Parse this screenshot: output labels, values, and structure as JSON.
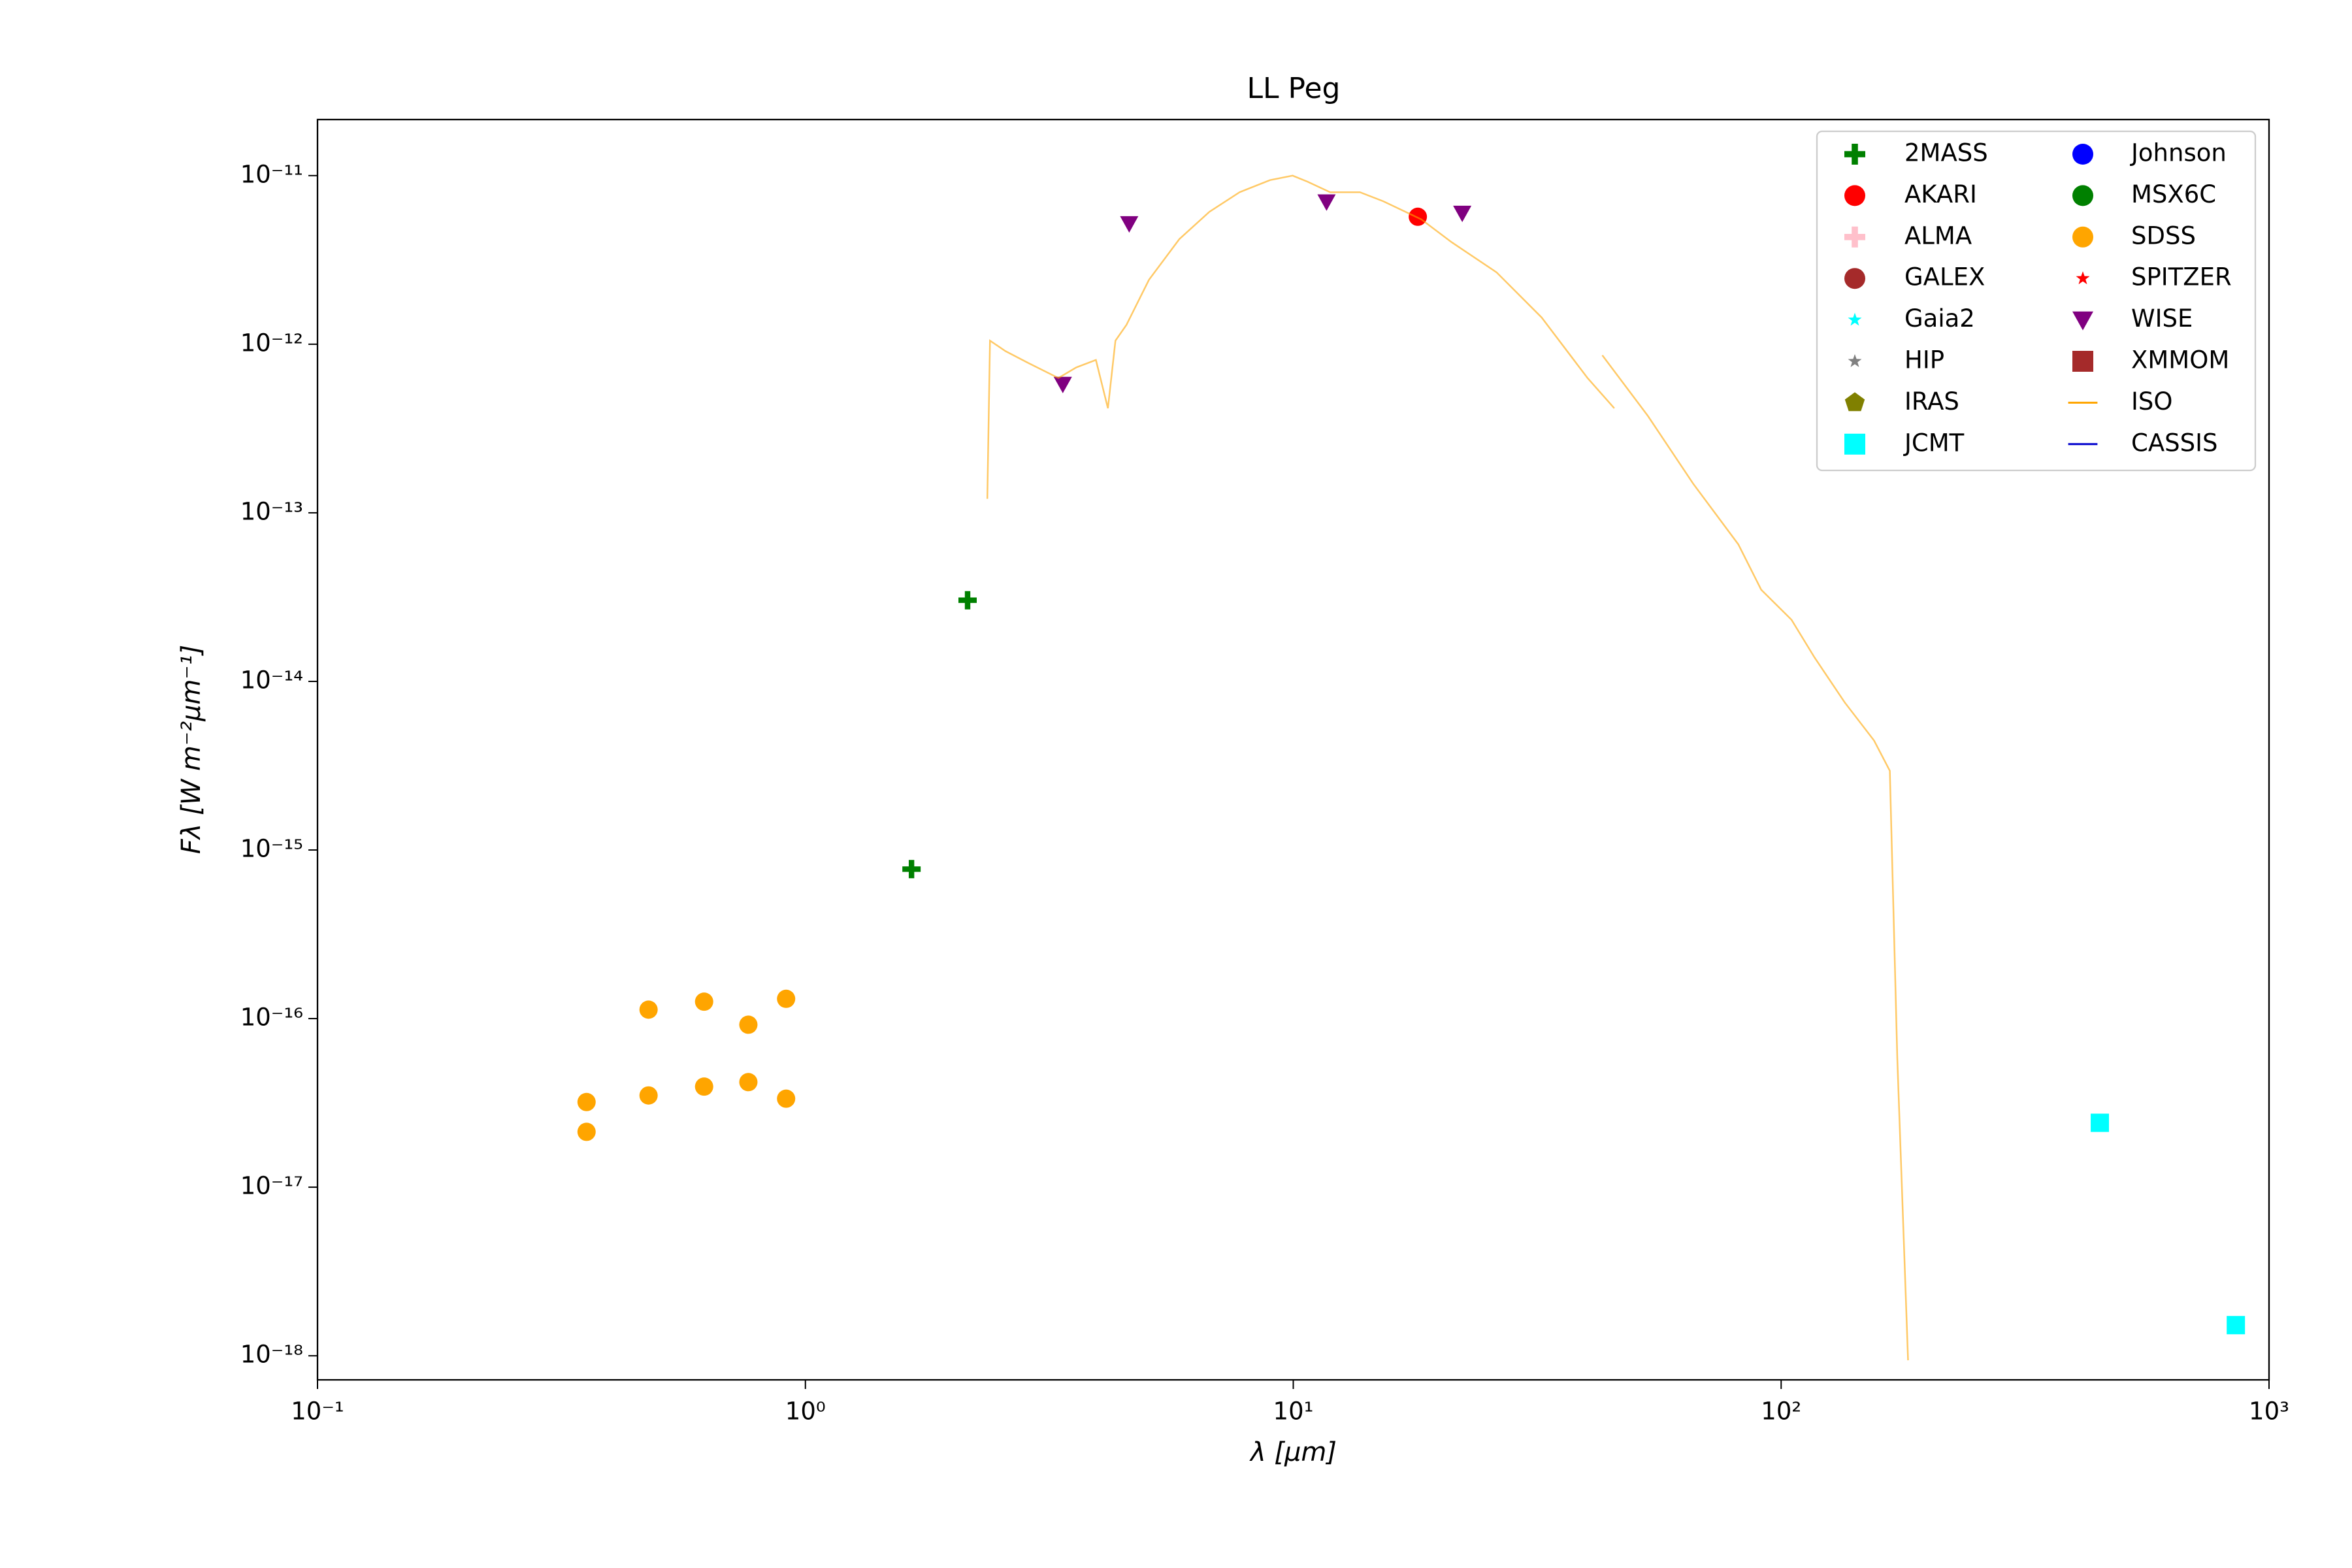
{
  "chart_data": {
    "type": "scatter",
    "title": "LL Peg",
    "x_label": "λ [μm]",
    "y_label": "Fλ [W m⁻²μm⁻¹]",
    "xscale": "log",
    "yscale": "log",
    "xlim": [
      0.1,
      1000
    ],
    "ylim": [
      7.2e-19,
      2.15e-11
    ],
    "xticks": [
      {
        "value": 0.1,
        "label": "10⁻¹"
      },
      {
        "value": 1,
        "label": "10⁰"
      },
      {
        "value": 10,
        "label": "10¹"
      },
      {
        "value": 100,
        "label": "10²"
      },
      {
        "value": 1000,
        "label": "10³"
      }
    ],
    "yticks": [
      {
        "value": 1e-18,
        "label": "10⁻¹⁸"
      },
      {
        "value": 1e-17,
        "label": "10⁻¹⁷"
      },
      {
        "value": 1e-16,
        "label": "10⁻¹⁶"
      },
      {
        "value": 1e-15,
        "label": "10⁻¹⁵"
      },
      {
        "value": 1e-14,
        "label": "10⁻¹⁴"
      },
      {
        "value": 1e-13,
        "label": "10⁻¹³"
      },
      {
        "value": 1e-12,
        "label": "10⁻¹²"
      },
      {
        "value": 1e-11,
        "label": "10⁻¹¹"
      }
    ],
    "legend": "upper right",
    "series": [
      {
        "name": "2MASS",
        "color": "#008000",
        "marker": "plus",
        "x": [
          1.65,
          2.15
        ],
        "values": [
          7.7e-16,
          3.03e-14
        ]
      },
      {
        "name": "AKARI",
        "color": "#ff0000",
        "marker": "circle",
        "x": [
          18.0
        ],
        "values": [
          5.7e-12
        ]
      },
      {
        "name": "ALMA",
        "color": "#ffc0cb",
        "marker": "plus",
        "x": [],
        "values": []
      },
      {
        "name": "GALEX",
        "color": "#a52a2a",
        "marker": "circle",
        "x": [],
        "values": []
      },
      {
        "name": "Gaia2",
        "color": "#00ffff",
        "marker": "star",
        "x": [],
        "values": []
      },
      {
        "name": "HIP",
        "color": "#808080",
        "marker": "star",
        "x": [],
        "values": []
      },
      {
        "name": "IRAS",
        "color": "#808000",
        "marker": "pentagon",
        "x": [],
        "values": []
      },
      {
        "name": "JCMT",
        "color": "#00ffff",
        "marker": "square",
        "x": [
          450,
          855
        ],
        "values": [
          2.41e-17,
          1.52e-18
        ]
      },
      {
        "name": "Johnson",
        "color": "#0000ff",
        "marker": "circle",
        "x": [],
        "values": []
      },
      {
        "name": "MSX6C",
        "color": "#008000",
        "marker": "circle",
        "x": [],
        "values": []
      },
      {
        "name": "SDSS",
        "color": "#ffa500",
        "marker": "circle",
        "x": [
          0.356,
          0.356,
          0.477,
          0.477,
          0.62,
          0.62,
          0.764,
          0.764,
          0.913,
          0.913
        ],
        "values": [
          3.2e-17,
          2.13e-17,
          1.13e-16,
          3.5e-17,
          1.26e-16,
          3.95e-17,
          9.2e-17,
          4.2e-17,
          1.31e-16,
          3.35e-17
        ]
      },
      {
        "name": "SPITZER",
        "color": "#ff0000",
        "marker": "star",
        "x": [],
        "values": []
      },
      {
        "name": "WISE",
        "color": "#800080",
        "marker": "triangle-down",
        "x": [
          3.37,
          4.61,
          11.7,
          22.2
        ],
        "values": [
          5.8e-13,
          5.2e-12,
          7e-12,
          6e-12
        ]
      },
      {
        "name": "XMMOM",
        "color": "#a52a2a",
        "marker": "square",
        "x": [],
        "values": []
      },
      {
        "name": "ISO",
        "color": "#ffa500",
        "marker": "line",
        "x": [
          2.36,
          2.39,
          2.57,
          2.86,
          3.3,
          3.59,
          3.94,
          4.17,
          4.32,
          4.55,
          5.06,
          5.84,
          6.73,
          7.76,
          8.96,
          9.97,
          10.7,
          11.9,
          13.7,
          15.3,
          18.3,
          21.1,
          26.1,
          32.3,
          40.1,
          45.5,
          null,
          43.0,
          53.3,
          66.0,
          81.7,
          91.0,
          105,
          117,
          135,
          155,
          167,
          173,
          182
        ],
        "values": [
          1.21e-13,
          1.05e-12,
          9.1e-13,
          7.75e-13,
          6.3e-13,
          7.28e-13,
          8.07e-13,
          4.17e-13,
          1.05e-12,
          1.3e-12,
          2.41e-12,
          4.2e-12,
          6.1e-12,
          7.97e-12,
          9.4e-12,
          1e-11,
          9.2e-12,
          7.97e-12,
          7.97e-12,
          7.04e-12,
          5.5e-12,
          4.03e-12,
          2.67e-12,
          1.44e-12,
          6.3e-13,
          4.17e-13,
          null,
          8.6e-13,
          3.76e-13,
          1.49e-13,
          6.5e-14,
          3.5e-14,
          2.32e-14,
          1.39e-14,
          7.5e-15,
          4.46e-15,
          2.95e-15,
          5.85e-17,
          9.4e-19
        ]
      },
      {
        "name": "CASSIS",
        "color": "#0000cd",
        "marker": "line",
        "x": [],
        "values": []
      }
    ]
  }
}
